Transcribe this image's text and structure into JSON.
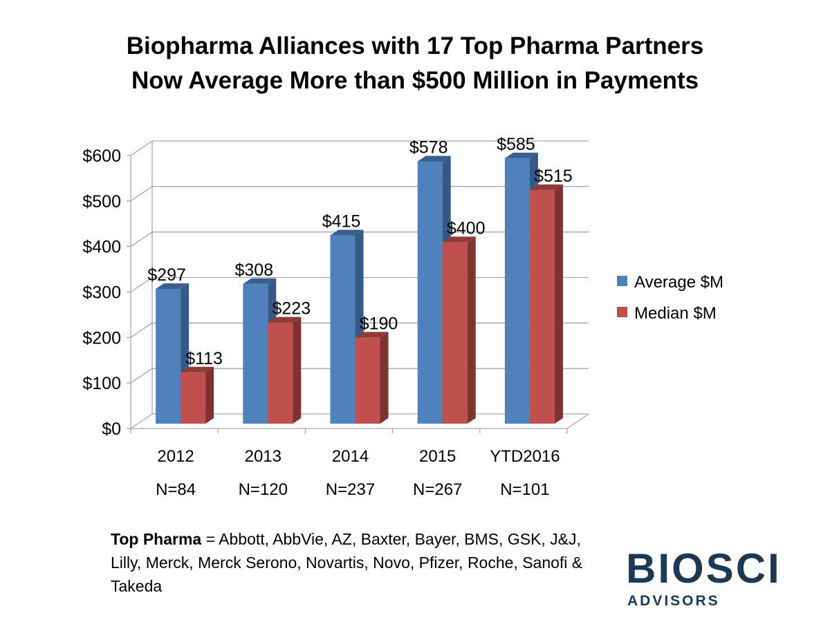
{
  "chart_data": {
    "type": "bar",
    "title": "Biopharma Alliances with 17 Top Pharma Partners Now Average More than $500 Million in Payments",
    "title_lines": [
      "Biopharma Alliances with 17 Top Pharma Partners",
      "Now Average More than $500 Million in Payments"
    ],
    "categories": [
      "2012",
      "2013",
      "2014",
      "2015",
      "YTD2016"
    ],
    "category_sublabels": [
      "N=84",
      "N=120",
      "N=237",
      "N=267",
      "N=101"
    ],
    "series": [
      {
        "name": "Average $M",
        "color": "#4f81bd",
        "values": [
          297,
          308,
          415,
          578,
          585
        ],
        "labels": [
          "$297",
          "$308",
          "$415",
          "$578",
          "$585"
        ]
      },
      {
        "name": "Median $M",
        "color": "#c0504d",
        "values": [
          113,
          223,
          190,
          400,
          515
        ],
        "labels": [
          "$113",
          "$223",
          "$190",
          "$400",
          "$515"
        ]
      }
    ],
    "ylim": [
      0,
      600
    ],
    "yticks": [
      0,
      100,
      200,
      300,
      400,
      500,
      600
    ],
    "ytick_labels": [
      "$0",
      "$100",
      "$200",
      "$300",
      "$400",
      "$500",
      "$600"
    ],
    "xlabel": "",
    "ylabel": "",
    "grid": true,
    "legend_position": "right",
    "style": "3d-clustered-column"
  },
  "footnote": {
    "bold": "Top Pharma",
    "text": " = Abbott, AbbVie, AZ, Baxter, Bayer, BMS, GSK, J&J, Lilly, Merck, Merck Serono, Novartis, Novo, Pfizer, Roche, Sanofi & Takeda"
  },
  "logo": {
    "text": "BIOSCI",
    "subtext": "ADVISORS"
  }
}
